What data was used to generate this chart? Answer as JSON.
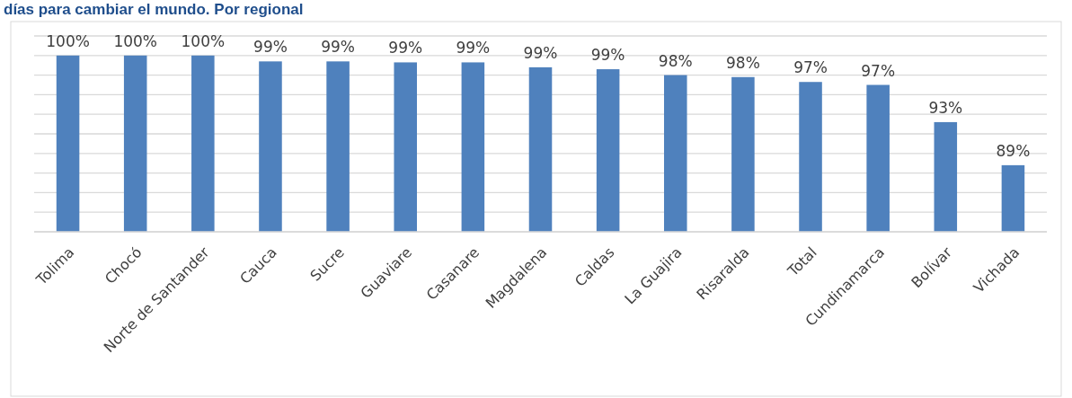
{
  "chart_data": {
    "type": "bar",
    "title": "días para cambiar el mundo. Por regional",
    "categories": [
      "Tolima",
      "Chocó",
      "Norte de Santander",
      "Cauca",
      "Sucre",
      "Guaviare",
      "Casanare",
      "Magdalena",
      "Caldas",
      "La Guajira",
      "Risaralda",
      "Total",
      "Cundinamarca",
      "Bolívar",
      "Vichada"
    ],
    "values": [
      100,
      100,
      100,
      99.4,
      99.4,
      99.3,
      99.3,
      98.8,
      98.6,
      98.0,
      97.8,
      97.3,
      97.0,
      93.2,
      88.8
    ],
    "value_labels": [
      "100%",
      "100%",
      "100%",
      "99%",
      "99%",
      "99%",
      "99%",
      "99%",
      "99%",
      "98%",
      "98%",
      "97%",
      "97%",
      "93%",
      "89%"
    ],
    "color": "#4f81bd",
    "ylim": [
      82,
      102
    ],
    "yticks": [
      {
        "value": 82,
        "label": null
      },
      {
        "value": 84,
        "label": null
      },
      {
        "value": 86,
        "label": null
      },
      {
        "value": 88,
        "label": null
      },
      {
        "value": 90,
        "label": null
      },
      {
        "value": 92,
        "label": null
      },
      {
        "value": 94,
        "label": null
      },
      {
        "value": 96,
        "label": null
      },
      {
        "value": 98,
        "label": null
      },
      {
        "value": 100,
        "label": null
      },
      {
        "value": 102,
        "label": null
      }
    ],
    "tick_labels": "x",
    "grid": "y"
  }
}
